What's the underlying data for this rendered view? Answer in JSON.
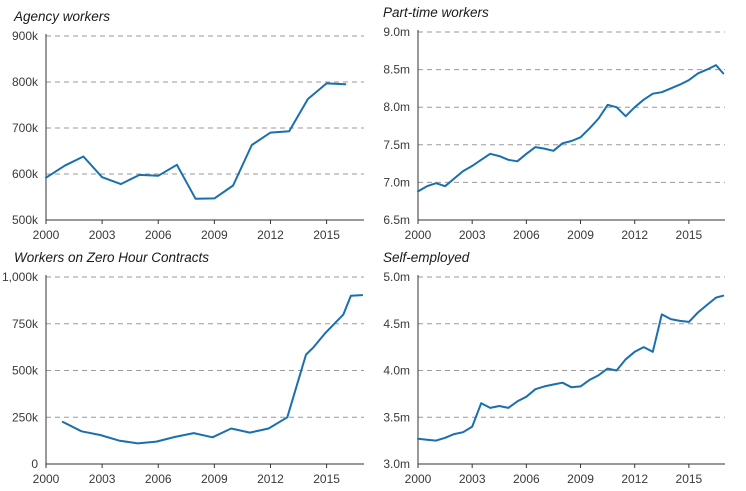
{
  "colors": {
    "line": "#1a6fae",
    "grid": "#9a9a9a",
    "axis": "#333333",
    "text": "#3a3a3a"
  },
  "chart_data": [
    {
      "type": "line",
      "title": "Agency workers",
      "xlabel": "",
      "ylabel": "",
      "xlim": [
        2000,
        2017
      ],
      "ylim": [
        500000,
        900000
      ],
      "x_ticks": [
        2000,
        2003,
        2006,
        2009,
        2012,
        2015
      ],
      "x_tick_labels": [
        "2000",
        "2003",
        "2006",
        "2009",
        "2012",
        "2015"
      ],
      "y_ticks": [
        500000,
        600000,
        700000,
        800000,
        900000
      ],
      "y_tick_labels": [
        "500k",
        "600k",
        "700k",
        "800k",
        "900k"
      ],
      "grid": "horizontal dashed",
      "series": [
        {
          "x": [
            2000,
            2001,
            2002,
            2003,
            2004,
            2005,
            2006,
            2007,
            2008,
            2009,
            2010,
            2011,
            2012,
            2013,
            2014,
            2015,
            2016
          ],
          "values": [
            592000,
            618000,
            638000,
            593000,
            578000,
            598000,
            596000,
            620000,
            546000,
            547000,
            575000,
            663000,
            690000,
            693000,
            763000,
            797000,
            795000
          ]
        }
      ]
    },
    {
      "type": "line",
      "title": "Part-time workers",
      "xlabel": "",
      "ylabel": "",
      "xlim": [
        2000,
        2017
      ],
      "ylim": [
        6.5,
        9.0
      ],
      "x_ticks": [
        2000,
        2003,
        2006,
        2009,
        2012,
        2015
      ],
      "x_tick_labels": [
        "2000",
        "2003",
        "2006",
        "2009",
        "2012",
        "2015"
      ],
      "y_ticks": [
        6.5,
        7.0,
        7.5,
        8.0,
        8.5,
        9.0
      ],
      "y_tick_labels": [
        "6.5m",
        "7.0m",
        "7.5m",
        "8.0m",
        "8.5m",
        "9.0m"
      ],
      "grid": "horizontal dashed",
      "series": [
        {
          "x": [
            2000,
            2000.5,
            2001,
            2001.5,
            2002,
            2002.5,
            2003,
            2003.5,
            2004,
            2004.5,
            2005,
            2005.5,
            2006,
            2006.5,
            2007,
            2007.5,
            2008,
            2008.5,
            2009,
            2009.5,
            2010,
            2010.5,
            2011,
            2011.5,
            2012,
            2012.5,
            2013,
            2013.5,
            2014,
            2014.5,
            2015,
            2015.5,
            2016,
            2016.5,
            2016.9
          ],
          "values": [
            6.88,
            6.95,
            6.99,
            6.95,
            7.05,
            7.15,
            7.22,
            7.3,
            7.38,
            7.35,
            7.3,
            7.28,
            7.38,
            7.47,
            7.45,
            7.42,
            7.52,
            7.55,
            7.6,
            7.72,
            7.85,
            8.03,
            8.0,
            7.88,
            8.0,
            8.1,
            8.18,
            8.2,
            8.25,
            8.3,
            8.36,
            8.45,
            8.5,
            8.56,
            8.45
          ]
        }
      ]
    },
    {
      "type": "line",
      "title": "Workers on Zero Hour Contracts",
      "xlabel": "",
      "ylabel": "",
      "xlim": [
        2000,
        2017
      ],
      "ylim": [
        0,
        1000000
      ],
      "x_ticks": [
        2000,
        2003,
        2006,
        2009,
        2012,
        2015
      ],
      "x_tick_labels": [
        "2000",
        "2003",
        "2006",
        "2009",
        "2012",
        "2015"
      ],
      "y_ticks": [
        0,
        250000,
        500000,
        750000,
        1000000
      ],
      "y_tick_labels": [
        "0",
        "250k",
        "500k",
        "750k",
        "1,000k"
      ],
      "grid": "horizontal dashed",
      "series": [
        {
          "x": [
            2000.9,
            2001.9,
            2002.9,
            2003.9,
            2004.9,
            2005.9,
            2006.9,
            2007.9,
            2008.9,
            2009.9,
            2010.9,
            2011.9,
            2012.9,
            2013.9,
            2014.3,
            2014.9,
            2015.9,
            2016.3,
            2016.9
          ],
          "values": [
            225000,
            175000,
            155000,
            125000,
            110000,
            120000,
            145000,
            165000,
            143000,
            190000,
            168000,
            190000,
            250000,
            585000,
            624000,
            697000,
            800000,
            900000,
            903000
          ]
        }
      ]
    },
    {
      "type": "line",
      "title": "Self-employed",
      "xlabel": "",
      "ylabel": "",
      "xlim": [
        2000,
        2017
      ],
      "ylim": [
        3.0,
        5.0
      ],
      "x_ticks": [
        2000,
        2003,
        2006,
        2009,
        2012,
        2015
      ],
      "x_tick_labels": [
        "2000",
        "2003",
        "2006",
        "2009",
        "2012",
        "2015"
      ],
      "y_ticks": [
        3.0,
        3.5,
        4.0,
        4.5,
        5.0
      ],
      "y_tick_labels": [
        "3.0m",
        "3.5m",
        "4.0m",
        "4.5m",
        "5.0m"
      ],
      "grid": "horizontal dashed",
      "series": [
        {
          "x": [
            2000,
            2000.5,
            2001,
            2001.5,
            2002,
            2002.5,
            2003,
            2003.5,
            2004,
            2004.5,
            2005,
            2005.5,
            2006,
            2006.5,
            2007,
            2007.5,
            2008,
            2008.5,
            2009,
            2009.5,
            2010,
            2010.5,
            2011,
            2011.5,
            2012,
            2012.5,
            2013,
            2013.5,
            2014,
            2014.5,
            2015,
            2015.5,
            2016,
            2016.5,
            2016.9
          ],
          "values": [
            3.27,
            3.26,
            3.25,
            3.28,
            3.32,
            3.34,
            3.4,
            3.65,
            3.6,
            3.62,
            3.6,
            3.67,
            3.72,
            3.8,
            3.83,
            3.85,
            3.87,
            3.82,
            3.83,
            3.9,
            3.95,
            4.02,
            4.0,
            4.12,
            4.2,
            4.25,
            4.2,
            4.6,
            4.55,
            4.53,
            4.52,
            4.62,
            4.7,
            4.78,
            4.8
          ]
        }
      ]
    }
  ]
}
